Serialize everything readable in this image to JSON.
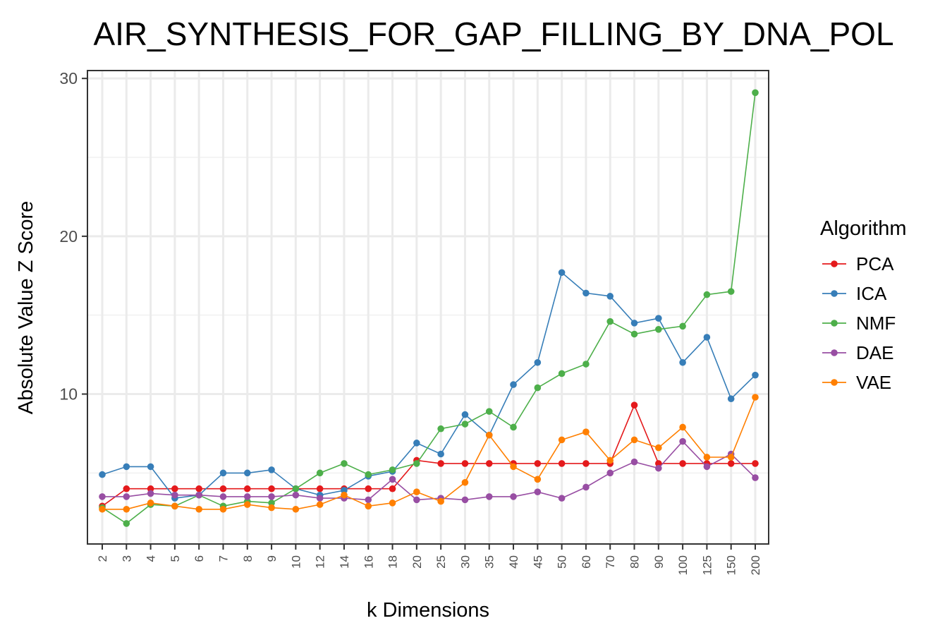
{
  "chart_data": {
    "type": "line",
    "title": "AIR_SYNTHESIS_FOR_GAP_FILLING_BY_DNA_POL",
    "xlabel": "k Dimensions",
    "ylabel": "Absolute Value Z Score",
    "ylim": [
      0.5,
      30.5
    ],
    "yticks": [
      10,
      20,
      30
    ],
    "grid": true,
    "legend_title": "Algorithm",
    "legend_position": "right",
    "categories": [
      "2",
      "3",
      "4",
      "5",
      "6",
      "7",
      "8",
      "9",
      "10",
      "12",
      "14",
      "16",
      "18",
      "20",
      "25",
      "30",
      "35",
      "40",
      "45",
      "50",
      "60",
      "70",
      "80",
      "90",
      "100",
      "125",
      "150",
      "200"
    ],
    "series": [
      {
        "name": "PCA",
        "color": "#e41a1c",
        "values": [
          2.9,
          4.0,
          4.0,
          4.0,
          4.0,
          4.0,
          4.0,
          4.0,
          4.0,
          4.0,
          4.0,
          4.0,
          4.0,
          5.8,
          5.6,
          5.6,
          5.6,
          5.6,
          5.6,
          5.6,
          5.6,
          5.6,
          9.3,
          5.6,
          5.6,
          5.6,
          5.6,
          5.6
        ]
      },
      {
        "name": "ICA",
        "color": "#377eb8",
        "values": [
          4.9,
          5.4,
          5.4,
          3.4,
          3.6,
          5.0,
          5.0,
          5.2,
          4.0,
          3.6,
          3.9,
          4.8,
          5.1,
          6.9,
          6.2,
          8.7,
          7.4,
          10.6,
          12.0,
          17.7,
          16.4,
          16.2,
          14.5,
          14.8,
          12.0,
          13.6,
          9.7,
          11.2
        ]
      },
      {
        "name": "NMF",
        "color": "#4daf4a",
        "values": [
          2.8,
          1.8,
          3.0,
          2.9,
          3.6,
          2.9,
          3.2,
          3.1,
          4.0,
          5.0,
          5.6,
          4.9,
          5.2,
          5.6,
          7.8,
          8.1,
          8.9,
          7.9,
          10.4,
          11.3,
          11.9,
          14.6,
          13.8,
          14.1,
          14.3,
          16.3,
          16.5,
          29.1
        ]
      },
      {
        "name": "DAE",
        "color": "#984ea3",
        "values": [
          3.5,
          3.5,
          3.7,
          3.6,
          3.6,
          3.5,
          3.5,
          3.5,
          3.6,
          3.4,
          3.4,
          3.3,
          4.6,
          3.3,
          3.4,
          3.3,
          3.5,
          3.5,
          3.8,
          3.4,
          4.1,
          5.0,
          5.7,
          5.3,
          7.0,
          5.4,
          6.2,
          4.7
        ]
      },
      {
        "name": "VAE",
        "color": "#ff7f00",
        "values": [
          2.7,
          2.7,
          3.1,
          2.9,
          2.7,
          2.7,
          3.0,
          2.8,
          2.7,
          3.0,
          3.6,
          2.9,
          3.1,
          3.8,
          3.2,
          4.4,
          7.4,
          5.4,
          4.6,
          7.1,
          7.6,
          5.8,
          7.1,
          6.6,
          7.9,
          6.0,
          6.0,
          9.8
        ]
      }
    ]
  }
}
